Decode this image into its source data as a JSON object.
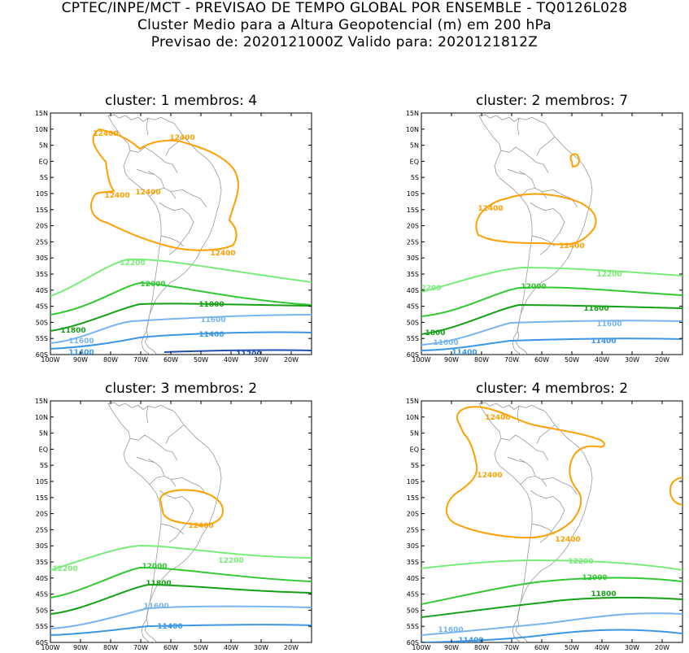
{
  "header": {
    "line1": "CPTEC/INPE/MCT - PREVISAO DE TEMPO GLOBAL POR ENSEMBLE - TQ0126L028",
    "line2": "Cluster Medio para a Altura Geopotencial (m) em 200 hPa",
    "line3": "Previsao de: 2020121000Z   Valido para: 2020121812Z"
  },
  "axes": {
    "lat_labels": [
      "15N",
      "10N",
      "5N",
      "EQ",
      "5S",
      "10S",
      "15S",
      "20S",
      "25S",
      "30S",
      "35S",
      "40S",
      "45S",
      "50S",
      "55S",
      "60S"
    ],
    "lon_labels": [
      "100W",
      "90W",
      "80W",
      "70W",
      "60W",
      "50W",
      "40W",
      "30W",
      "20W"
    ]
  },
  "colors": {
    "c12400": "#ffa000",
    "c12200": "#78ec78",
    "c12000": "#32c832",
    "c11800": "#14a014",
    "c11600": "#78b4f0",
    "c11400": "#3c96e6",
    "c11200": "#1e50b4",
    "coast": "#9a9a9a"
  },
  "panels": [
    {
      "title": "cluster: 1   membros: 4",
      "labels": [
        "12400",
        "12400",
        "12400",
        "12400",
        "12400",
        "12200",
        "12000",
        "11800",
        "11800",
        "11600",
        "11600",
        "11400",
        "11400",
        "11200"
      ]
    },
    {
      "title": "cluster: 2   membros: 7",
      "labels": [
        "12400",
        "12400",
        "12200",
        "2200",
        "12000",
        "11800",
        "1800",
        "11600",
        "11600",
        "11400",
        "11400"
      ]
    },
    {
      "title": "cluster: 3   membros: 2",
      "labels": [
        "12400",
        "12200",
        "12200",
        "12000",
        "11800",
        "11600",
        "11400"
      ]
    },
    {
      "title": "cluster: 4   membros: 2",
      "labels": [
        "12400",
        "12400",
        "12400",
        "12200",
        "12000",
        "11800",
        "11600",
        "11400"
      ]
    }
  ]
}
